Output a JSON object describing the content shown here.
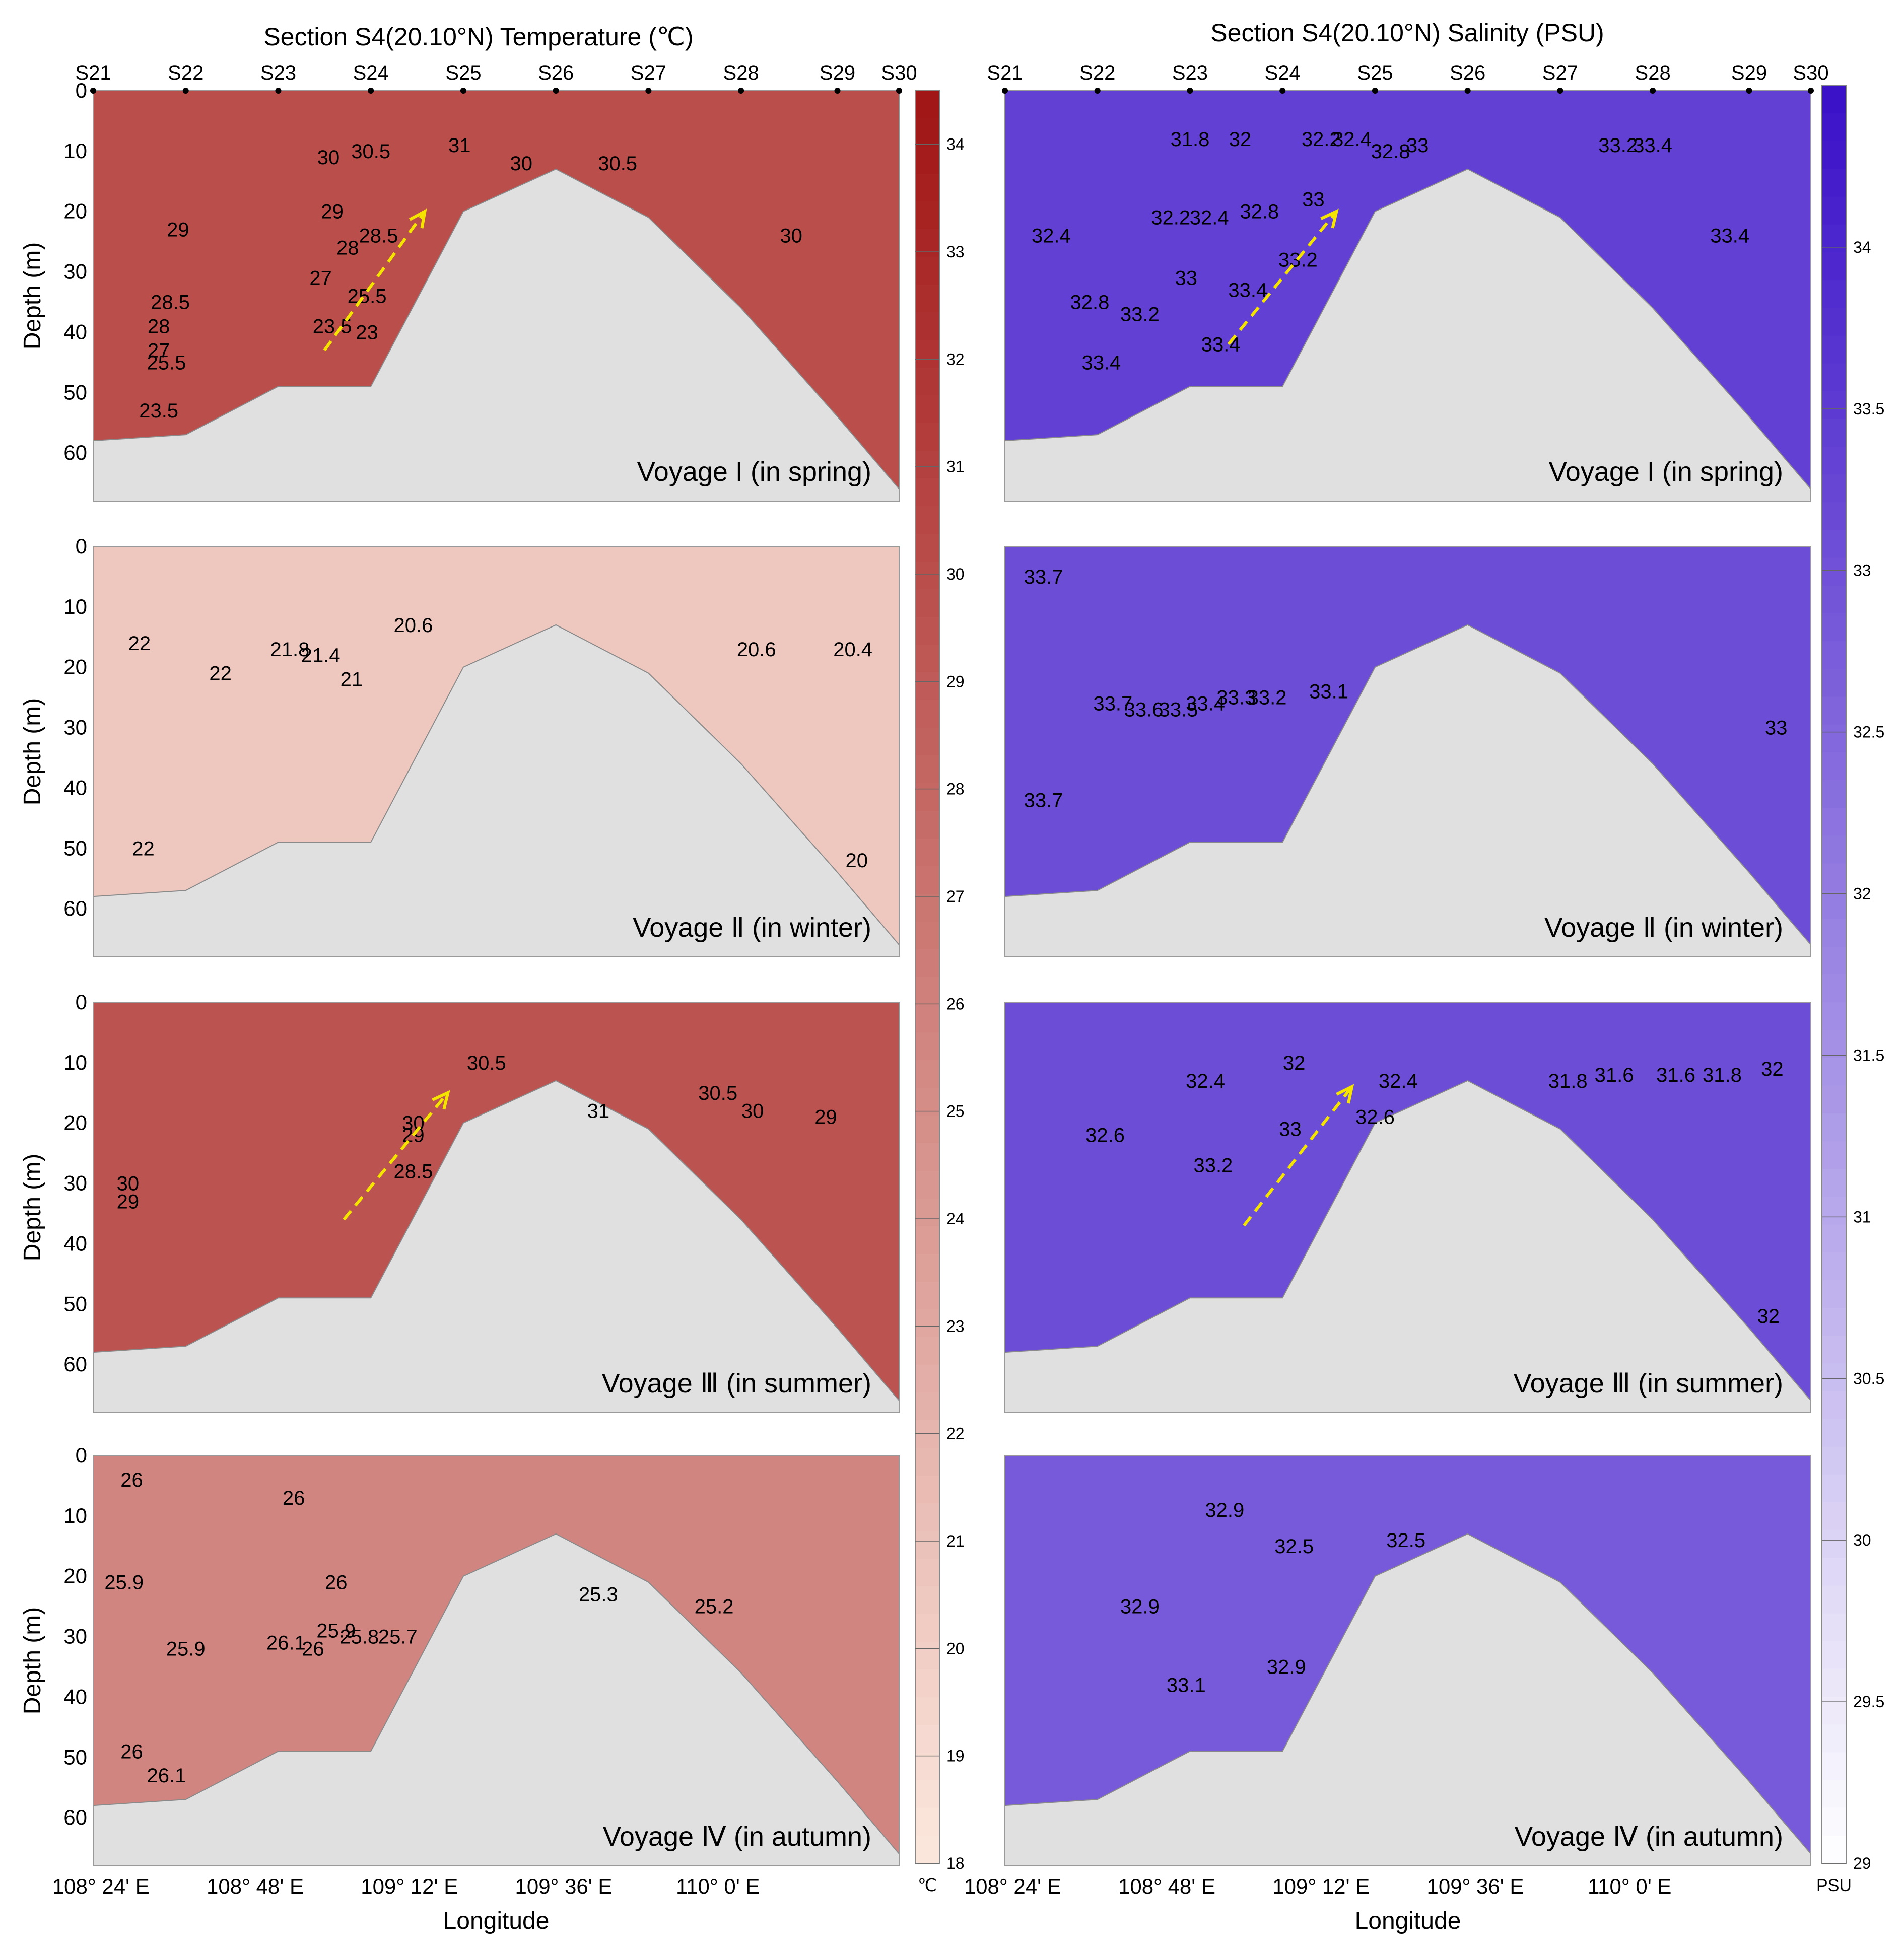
{
  "figure": {
    "title_temperature": "Section S4(20.10°N) Temperature (℃)",
    "title_salinity": "Section S4(20.10°N) Salinity (PSU)",
    "colors": {
      "seabed": "#e0e0e0",
      "contour_line": "#2b2b2b",
      "arrow": "#f5e400"
    }
  },
  "chart_data": [
    {
      "type": "heatmap",
      "title": "Section S4(20.10°N) Temperature (℃)",
      "xlabel": "Longitude",
      "ylabel": "Depth (m)",
      "unit": "℃",
      "stations": [
        "S21",
        "S22",
        "S23",
        "S24",
        "S25",
        "S26",
        "S27",
        "S28",
        "S29",
        "S30"
      ],
      "station_longitudes": [
        108.38,
        108.62,
        108.86,
        109.1,
        109.34,
        109.58,
        109.82,
        110.06,
        110.31,
        110.47
      ],
      "x_ticks": [
        "108° 24' E",
        "108° 48' E",
        "109° 12' E",
        "109° 36' E",
        "110° 0' E"
      ],
      "x_tick_values": [
        108.4,
        108.8,
        109.2,
        109.6,
        110.0
      ],
      "xlim": [
        108.38,
        110.47
      ],
      "y_ticks": [
        "0",
        "10",
        "20",
        "30",
        "40",
        "50",
        "60"
      ],
      "ylim": [
        0,
        68
      ],
      "bottom_depth_m": [
        58,
        57,
        49,
        49,
        20,
        13,
        21,
        36,
        54,
        66
      ],
      "colorbar": {
        "ticks": [
          "34",
          "33",
          "32",
          "31",
          "30",
          "29",
          "28",
          "27",
          "26",
          "25",
          "24",
          "23",
          "22",
          "21",
          "20",
          "19",
          "18"
        ],
        "range": [
          18,
          34.5
        ],
        "unit": "℃",
        "color_low": "#fce8de",
        "color_high": "#a01414"
      },
      "panels": [
        {
          "voyage": "Voyage I (in spring)",
          "base_value": 30,
          "contour_labels": [
            {
              "text": "30",
              "lon": 108.99,
              "depth": 11
            },
            {
              "text": "30.5",
              "lon": 109.1,
              "depth": 10
            },
            {
              "text": "31",
              "lon": 109.33,
              "depth": 9
            },
            {
              "text": "30",
              "lon": 109.49,
              "depth": 12
            },
            {
              "text": "30.5",
              "lon": 109.74,
              "depth": 12
            },
            {
              "text": "29",
              "lon": 109.0,
              "depth": 20
            },
            {
              "text": "29",
              "lon": 108.6,
              "depth": 23
            },
            {
              "text": "28.5",
              "lon": 109.12,
              "depth": 24
            },
            {
              "text": "28",
              "lon": 109.04,
              "depth": 26
            },
            {
              "text": "27",
              "lon": 108.97,
              "depth": 31
            },
            {
              "text": "25.5",
              "lon": 109.09,
              "depth": 34
            },
            {
              "text": "28.5",
              "lon": 108.58,
              "depth": 35
            },
            {
              "text": "28",
              "lon": 108.55,
              "depth": 39
            },
            {
              "text": "27",
              "lon": 108.55,
              "depth": 43
            },
            {
              "text": "25.5",
              "lon": 108.57,
              "depth": 45
            },
            {
              "text": "23.5",
              "lon": 109.0,
              "depth": 39
            },
            {
              "text": "23",
              "lon": 109.09,
              "depth": 40
            },
            {
              "text": "23.5",
              "lon": 108.55,
              "depth": 53
            },
            {
              "text": "30",
              "lon": 110.19,
              "depth": 24
            }
          ],
          "arrow_start": [
            108.98,
            43
          ],
          "arrow_end": [
            109.24,
            20
          ]
        },
        {
          "voyage": "Voyage Ⅱ (in winter)",
          "base_value": 20.5,
          "contour_labels": [
            {
              "text": "22",
              "lon": 108.5,
              "depth": 16
            },
            {
              "text": "22",
              "lon": 108.71,
              "depth": 21
            },
            {
              "text": "21.8",
              "lon": 108.89,
              "depth": 17
            },
            {
              "text": "21.4",
              "lon": 108.97,
              "depth": 18
            },
            {
              "text": "21",
              "lon": 109.05,
              "depth": 22
            },
            {
              "text": "20.6",
              "lon": 109.21,
              "depth": 13
            },
            {
              "text": "20.6",
              "lon": 110.1,
              "depth": 17
            },
            {
              "text": "20.4",
              "lon": 110.35,
              "depth": 17
            },
            {
              "text": "22",
              "lon": 108.51,
              "depth": 50
            },
            {
              "text": "20",
              "lon": 110.36,
              "depth": 52
            }
          ]
        },
        {
          "voyage": "Voyage Ⅲ (in summer)",
          "base_value": 29.6,
          "contour_labels": [
            {
              "text": "30.5",
              "lon": 109.4,
              "depth": 10
            },
            {
              "text": "30",
              "lon": 109.21,
              "depth": 20
            },
            {
              "text": "29",
              "lon": 109.21,
              "depth": 22
            },
            {
              "text": "28.5",
              "lon": 109.21,
              "depth": 28
            },
            {
              "text": "31",
              "lon": 109.69,
              "depth": 18
            },
            {
              "text": "30.5",
              "lon": 110.0,
              "depth": 15
            },
            {
              "text": "30",
              "lon": 110.09,
              "depth": 18
            },
            {
              "text": "29",
              "lon": 110.28,
              "depth": 19
            },
            {
              "text": "30",
              "lon": 108.47,
              "depth": 30
            },
            {
              "text": "29",
              "lon": 108.47,
              "depth": 33
            }
          ],
          "arrow_start": [
            109.03,
            36
          ],
          "arrow_end": [
            109.3,
            15
          ]
        },
        {
          "voyage": "Voyage Ⅳ (in autumn)",
          "base_value": 25.7,
          "contour_labels": [
            {
              "text": "26",
              "lon": 108.48,
              "depth": 4
            },
            {
              "text": "26",
              "lon": 108.9,
              "depth": 7
            },
            {
              "text": "25.9",
              "lon": 108.46,
              "depth": 21
            },
            {
              "text": "26",
              "lon": 109.01,
              "depth": 21
            },
            {
              "text": "25.9",
              "lon": 108.62,
              "depth": 32
            },
            {
              "text": "26.1",
              "lon": 108.88,
              "depth": 31
            },
            {
              "text": "26",
              "lon": 108.95,
              "depth": 32
            },
            {
              "text": "25.9",
              "lon": 109.01,
              "depth": 29
            },
            {
              "text": "25.8",
              "lon": 109.07,
              "depth": 30
            },
            {
              "text": "25.7",
              "lon": 109.17,
              "depth": 30
            },
            {
              "text": "25.3",
              "lon": 109.69,
              "depth": 23
            },
            {
              "text": "25.2",
              "lon": 109.99,
              "depth": 25
            },
            {
              "text": "26",
              "lon": 108.48,
              "depth": 49
            },
            {
              "text": "26.1",
              "lon": 108.57,
              "depth": 53
            }
          ]
        }
      ]
    },
    {
      "type": "heatmap",
      "title": "Section S4(20.10°N) Salinity (PSU)",
      "xlabel": "Longitude",
      "ylabel": "",
      "unit": "PSU",
      "stations": [
        "S21",
        "S22",
        "S23",
        "S24",
        "S25",
        "S26",
        "S27",
        "S28",
        "S29",
        "S30"
      ],
      "station_longitudes": [
        108.38,
        108.62,
        108.86,
        109.1,
        109.34,
        109.58,
        109.82,
        110.06,
        110.31,
        110.47
      ],
      "x_ticks": [
        "108° 24' E",
        "108° 48' E",
        "109° 12' E",
        "109° 36' E",
        "110° 0' E"
      ],
      "x_tick_values": [
        108.4,
        108.8,
        109.2,
        109.6,
        110.0
      ],
      "xlim": [
        108.38,
        110.47
      ],
      "y_ticks": [],
      "ylim": [
        0,
        68
      ],
      "bottom_depth_m": [
        58,
        57,
        49,
        49,
        20,
        13,
        21,
        36,
        54,
        66
      ],
      "colorbar": {
        "ticks": [
          "34",
          "33.5",
          "33",
          "32.5",
          "32",
          "31.5",
          "31",
          "30.5",
          "30",
          "29.5",
          "29"
        ],
        "range": [
          29,
          34.5
        ],
        "unit": "PSU",
        "color_low": "#ffffff",
        "color_high": "#3a10c8"
      },
      "panels": [
        {
          "voyage": "Voyage I (in spring)",
          "base_value": 33.4,
          "contour_labels": [
            {
              "text": "31.8",
              "lon": 108.86,
              "depth": 8
            },
            {
              "text": "32",
              "lon": 108.99,
              "depth": 8
            },
            {
              "text": "32.2",
              "lon": 109.2,
              "depth": 8
            },
            {
              "text": "32.4",
              "lon": 109.28,
              "depth": 8
            },
            {
              "text": "32.8",
              "lon": 109.38,
              "depth": 10
            },
            {
              "text": "33",
              "lon": 109.45,
              "depth": 9
            },
            {
              "text": "33.2",
              "lon": 109.97,
              "depth": 9
            },
            {
              "text": "33.4",
              "lon": 110.06,
              "depth": 9
            },
            {
              "text": "32.2",
              "lon": 108.81,
              "depth": 21
            },
            {
              "text": "32.4",
              "lon": 108.91,
              "depth": 21
            },
            {
              "text": "32.8",
              "lon": 109.04,
              "depth": 20
            },
            {
              "text": "33",
              "lon": 109.18,
              "depth": 18
            },
            {
              "text": "33.2",
              "lon": 109.14,
              "depth": 28
            },
            {
              "text": "32.4",
              "lon": 108.5,
              "depth": 24
            },
            {
              "text": "32.8",
              "lon": 108.6,
              "depth": 35
            },
            {
              "text": "33.2",
              "lon": 108.73,
              "depth": 37
            },
            {
              "text": "33",
              "lon": 108.85,
              "depth": 31
            },
            {
              "text": "33.4",
              "lon": 109.01,
              "depth": 33
            },
            {
              "text": "33.4",
              "lon": 108.94,
              "depth": 42
            },
            {
              "text": "33.4",
              "lon": 108.63,
              "depth": 45
            },
            {
              "text": "33.4",
              "lon": 110.26,
              "depth": 24
            }
          ],
          "arrow_start": [
            108.96,
            42
          ],
          "arrow_end": [
            109.24,
            20
          ]
        },
        {
          "voyage": "Voyage Ⅱ (in winter)",
          "base_value": 33.1,
          "contour_labels": [
            {
              "text": "33.7",
              "lon": 108.48,
              "depth": 5
            },
            {
              "text": "33.7",
              "lon": 108.66,
              "depth": 26
            },
            {
              "text": "33.6",
              "lon": 108.74,
              "depth": 27
            },
            {
              "text": "33.5",
              "lon": 108.83,
              "depth": 27
            },
            {
              "text": "33.4",
              "lon": 108.9,
              "depth": 26
            },
            {
              "text": "33.3",
              "lon": 108.98,
              "depth": 25
            },
            {
              "text": "33.2",
              "lon": 109.06,
              "depth": 25
            },
            {
              "text": "33.1",
              "lon": 109.22,
              "depth": 24
            },
            {
              "text": "33.7",
              "lon": 108.48,
              "depth": 42
            },
            {
              "text": "33",
              "lon": 110.38,
              "depth": 30
            }
          ]
        },
        {
          "voyage": "Voyage Ⅲ (in summer)",
          "base_value": 33.1,
          "contour_labels": [
            {
              "text": "32.4",
              "lon": 108.9,
              "depth": 13
            },
            {
              "text": "32",
              "lon": 109.13,
              "depth": 10
            },
            {
              "text": "32.4",
              "lon": 109.4,
              "depth": 13
            },
            {
              "text": "32.6",
              "lon": 108.64,
              "depth": 22
            },
            {
              "text": "33",
              "lon": 109.12,
              "depth": 21
            },
            {
              "text": "32.6",
              "lon": 109.34,
              "depth": 19
            },
            {
              "text": "33.2",
              "lon": 108.92,
              "depth": 27
            },
            {
              "text": "31.8",
              "lon": 109.84,
              "depth": 13
            },
            {
              "text": "31.6",
              "lon": 109.96,
              "depth": 12
            },
            {
              "text": "31.6",
              "lon": 110.12,
              "depth": 12
            },
            {
              "text": "31.8",
              "lon": 110.24,
              "depth": 12
            },
            {
              "text": "32",
              "lon": 110.37,
              "depth": 11
            },
            {
              "text": "32",
              "lon": 110.36,
              "depth": 52
            }
          ],
          "arrow_start": [
            109.0,
            37
          ],
          "arrow_end": [
            109.28,
            14
          ]
        },
        {
          "voyage": "Voyage Ⅳ (in autumn)",
          "base_value": 32.8,
          "contour_labels": [
            {
              "text": "32.9",
              "lon": 108.95,
              "depth": 9
            },
            {
              "text": "32.5",
              "lon": 109.13,
              "depth": 15
            },
            {
              "text": "32.5",
              "lon": 109.42,
              "depth": 14
            },
            {
              "text": "32.9",
              "lon": 108.73,
              "depth": 25
            },
            {
              "text": "33.1",
              "lon": 108.85,
              "depth": 38
            },
            {
              "text": "32.9",
              "lon": 109.11,
              "depth": 35
            }
          ]
        }
      ]
    }
  ]
}
